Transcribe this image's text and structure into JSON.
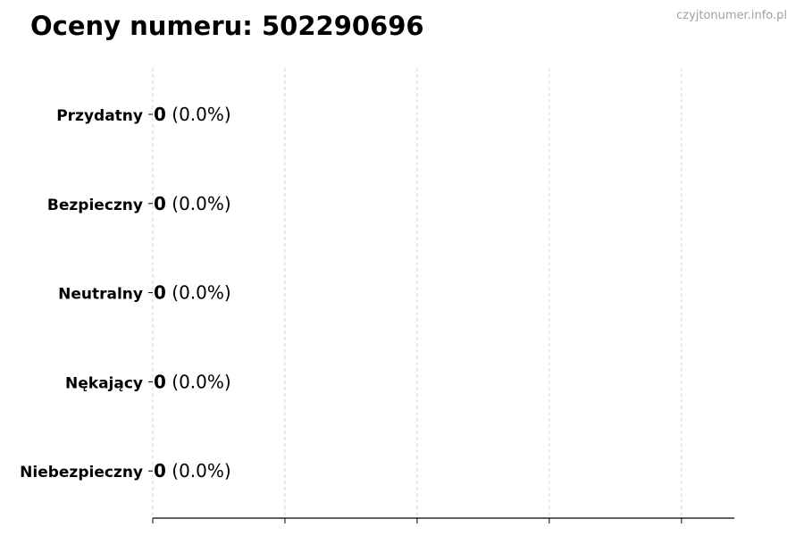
{
  "chart_data": {
    "type": "bar",
    "orientation": "horizontal",
    "title": "Oceny numeru: 502290696",
    "watermark": "czyjtonumer.info.pl",
    "categories": [
      "Przydatny",
      "Bezpieczny",
      "Neutralny",
      "Nękający",
      "Niebezpieczny"
    ],
    "values": [
      0,
      0,
      0,
      0,
      0
    ],
    "percent_labels": [
      "(0.0%)",
      "(0.0%)",
      "(0.0%)",
      "(0.0%)",
      "(0.0%)"
    ],
    "xlabel": "",
    "ylabel": "",
    "xlim": [
      0,
      4.4
    ],
    "x_ticks": [
      0,
      1,
      2,
      3,
      4
    ],
    "x_tick_labels_shown": false,
    "grid": "x, dashed",
    "bar_edge_color": "#000000",
    "grid_color": "#cccccc"
  }
}
